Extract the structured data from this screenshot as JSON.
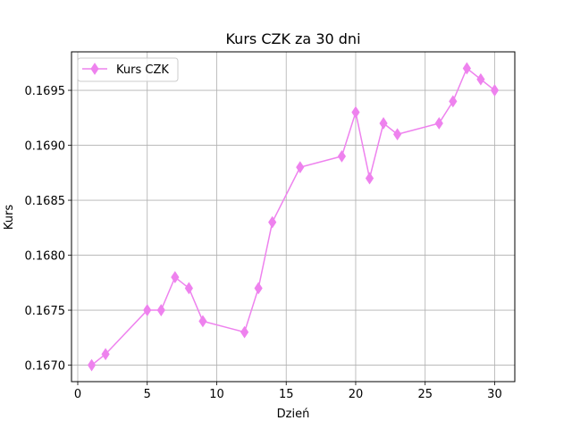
{
  "chart_data": {
    "type": "line",
    "title": "Kurs CZK za 30 dni",
    "xlabel": "Dzień",
    "ylabel": "Kurs",
    "xlim": [
      -0.45,
      31.45
    ],
    "ylim": [
      0.16685,
      0.16985
    ],
    "x_ticks": [
      0,
      5,
      10,
      15,
      20,
      25,
      30
    ],
    "y_ticks": [
      0.167,
      0.1675,
      0.168,
      0.1685,
      0.169,
      0.1695
    ],
    "y_tick_labels": [
      "0.1670",
      "0.1675",
      "0.1680",
      "0.1685",
      "0.1690",
      "0.1695"
    ],
    "grid": true,
    "legend_position": "upper-left",
    "series": [
      {
        "name": "Kurs CZK",
        "color": "#ee82ee",
        "marker": "thin-diamond",
        "x": [
          1,
          2,
          5,
          6,
          7,
          8,
          9,
          12,
          13,
          14,
          16,
          19,
          20,
          21,
          22,
          23,
          26,
          27,
          28,
          29,
          30
        ],
        "y": [
          0.167,
          0.1671,
          0.1675,
          0.1675,
          0.1678,
          0.1677,
          0.1674,
          0.1673,
          0.1677,
          0.1683,
          0.1688,
          0.1689,
          0.1693,
          0.1687,
          0.1692,
          0.1691,
          0.1692,
          0.1694,
          0.1697,
          0.1696,
          0.1695
        ]
      }
    ]
  }
}
